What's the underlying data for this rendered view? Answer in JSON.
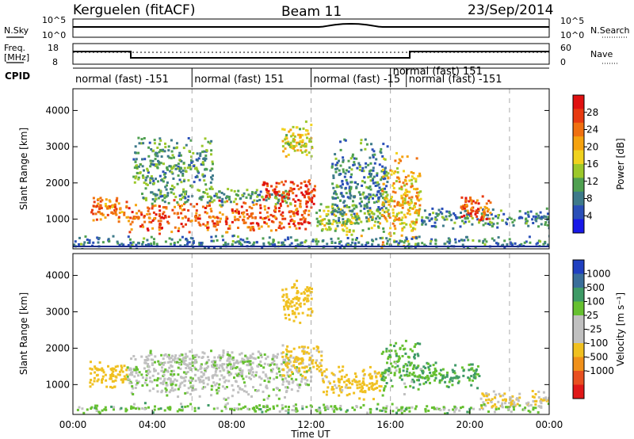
{
  "header": {
    "station": "Kerguelen (fitACF)",
    "beam": "Beam 11",
    "date": "23/Sep/2014"
  },
  "noise_panel": {
    "left_label": "N.Sky",
    "right_label": "N.Search",
    "left_ticks": [
      "10^5",
      "10^0"
    ],
    "right_ticks": [
      "10^5",
      "10^0"
    ]
  },
  "freq_panel": {
    "left_label_line1": "Freq.",
    "left_label_line2": "[MHz]",
    "right_label": "Nave",
    "left_ticks": [
      "18",
      "8"
    ],
    "right_ticks": [
      "60",
      "0"
    ]
  },
  "cpid_panel": {
    "label": "CPID",
    "modes": [
      {
        "text": "normal (fast) -151",
        "start_hour": 0.0
      },
      {
        "text": "normal (fast) 151",
        "start_hour": 6.0
      },
      {
        "text": "normal (fast) -15",
        "start_hour": 12.0
      },
      {
        "text": "normal (fast) 151",
        "start_hour": 16.0
      },
      {
        "text": "normal (fast) -151",
        "start_hour": 16.8
      }
    ]
  },
  "chart_data": [
    {
      "type": "heatmap",
      "panel": "power",
      "ylabel": "Slant Range [km]",
      "ylim": [
        180,
        4600
      ],
      "yticks": [
        "1000",
        "2000",
        "3000",
        "4000"
      ],
      "xlim": [
        0,
        24
      ],
      "colorbar": {
        "label": "Power [dB]",
        "ticks": [
          "4",
          "8",
          "12",
          "16",
          "20",
          "24",
          "28"
        ],
        "colors": [
          "#1818e8",
          "#2a4fb8",
          "#3e7a8a",
          "#4fa050",
          "#9cc82a",
          "#f0d21e",
          "#f5a20f",
          "#f07010",
          "#e83a10",
          "#e01010"
        ]
      },
      "echo_regions": [
        {
          "t0": 0.8,
          "t1": 2.7,
          "r_center": 1300,
          "r_width": 400,
          "level": 22
        },
        {
          "t0": 2.7,
          "t1": 12.0,
          "r_center": 1100,
          "r_width": 500,
          "level": 24
        },
        {
          "t0": 3.5,
          "t1": 11.0,
          "r_center": 1650,
          "r_width": 250,
          "level": 10
        },
        {
          "t0": 9.5,
          "t1": 12.2,
          "r_center": 1750,
          "r_width": 400,
          "level": 26
        },
        {
          "t0": 12.2,
          "t1": 15.5,
          "r_center": 1000,
          "r_width": 500,
          "level": 14
        },
        {
          "t0": 13.0,
          "t1": 15.8,
          "r_center": 2000,
          "r_width": 1400,
          "level": 8
        },
        {
          "t0": 15.5,
          "t1": 17.5,
          "r_center": 1500,
          "r_width": 1500,
          "level": 18
        },
        {
          "t0": 17.5,
          "t1": 24.0,
          "r_center": 1050,
          "r_width": 300,
          "level": 8
        },
        {
          "t0": 19.5,
          "t1": 21.0,
          "r_center": 1300,
          "r_width": 400,
          "level": 24
        },
        {
          "t0": 0.0,
          "t1": 24.0,
          "r_center": 380,
          "r_width": 200,
          "level": 8
        },
        {
          "t0": 3.0,
          "t1": 7.0,
          "r_center": 2500,
          "r_width": 900,
          "level": 10
        },
        {
          "t0": 10.5,
          "t1": 12.0,
          "r_center": 3200,
          "r_width": 600,
          "level": 16
        }
      ]
    },
    {
      "type": "heatmap",
      "panel": "velocity",
      "ylabel": "Slant Range [km]",
      "ylim": [
        180,
        4600
      ],
      "yticks": [
        "1000",
        "2000",
        "3000",
        "4000"
      ],
      "xlim": [
        0,
        24
      ],
      "xticks": [
        "00:00",
        "04:00",
        "08:00",
        "12:00",
        "16:00",
        "20:00",
        "00:00"
      ],
      "xlabel": "Time UT",
      "colorbar": {
        "label": "Velocity [m s⁻¹]",
        "ticks": [
          "1000",
          "500",
          "100",
          "25",
          "-25",
          "-100",
          "-500",
          "-1000"
        ],
        "colors": [
          "#2040c0",
          "#3a6e9a",
          "#3e9a66",
          "#66c030",
          "#c0c0c0",
          "#c0c0c0",
          "#f0c020",
          "#f0901a",
          "#e85020",
          "#e01818"
        ]
      },
      "echo_regions": [
        {
          "t0": 0.8,
          "t1": 2.7,
          "r_center": 1300,
          "r_width": 400,
          "level": -300
        },
        {
          "t0": 2.7,
          "t1": 12.0,
          "r_center": 1250,
          "r_width": 700,
          "level": 0
        },
        {
          "t0": 3.5,
          "t1": 11.0,
          "r_center": 1700,
          "r_width": 300,
          "level": 0
        },
        {
          "t0": 10.5,
          "t1": 12.5,
          "r_center": 1700,
          "r_width": 500,
          "level": -150
        },
        {
          "t0": 12.5,
          "t1": 15.5,
          "r_center": 1100,
          "r_width": 500,
          "level": -150
        },
        {
          "t0": 15.5,
          "t1": 17.5,
          "r_center": 1500,
          "r_width": 800,
          "level": 80
        },
        {
          "t0": 17.5,
          "t1": 20.5,
          "r_center": 1300,
          "r_width": 400,
          "level": 100
        },
        {
          "t0": 20.5,
          "t1": 24.0,
          "r_center": 600,
          "r_width": 300,
          "level": -100
        },
        {
          "t0": 0.0,
          "t1": 24.0,
          "r_center": 380,
          "r_width": 150,
          "level": 50
        },
        {
          "t0": 10.5,
          "t1": 12.0,
          "r_center": 3300,
          "r_width": 600,
          "level": -200
        }
      ]
    }
  ]
}
